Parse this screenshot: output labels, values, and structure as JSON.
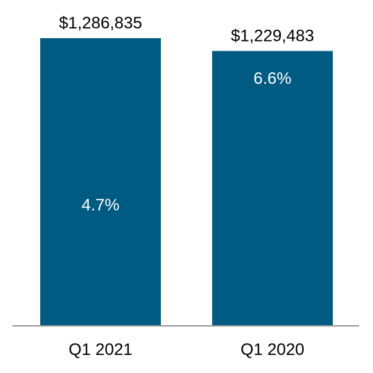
{
  "chart_data": {
    "type": "bar",
    "categories": [
      "Q1 2021",
      "Q1 2020"
    ],
    "values": [
      1286835,
      1229483
    ],
    "value_labels": [
      "$1,286,835",
      "$1,229,483"
    ],
    "inner_labels": [
      "4.7%",
      "6.6%"
    ],
    "title": "",
    "xlabel": "",
    "ylabel": "",
    "grid": false,
    "legend": "none",
    "colors": {
      "bar": "#005b82",
      "axis": "#9a9a9a"
    }
  }
}
